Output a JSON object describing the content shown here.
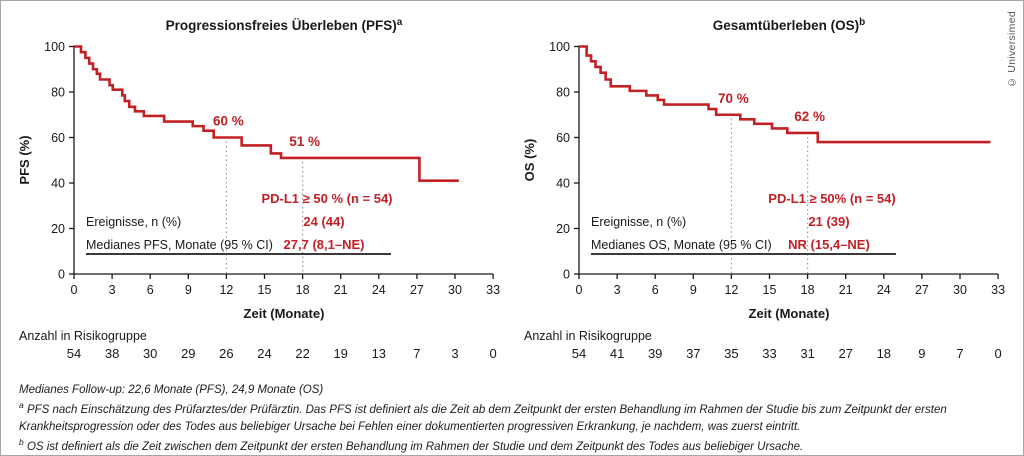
{
  "figure": {
    "credit": "© Universimed",
    "footnotes": {
      "followup": "Medianes Follow-up: 22,6 Monate (PFS), 24,9 Monate (OS)",
      "note_a_sup": "a",
      "note_a": "PFS nach Einschätzung des Prüfarztes/der Prüfärztin. Das PFS ist definiert als die Zeit ab dem Zeitpunkt der ersten Behandlung im Rahmen der Studie bis zum Zeitpunkt der ersten Krankheitsprogression oder des Todes aus beliebiger Ursache bei Fehlen einer dokumentierten progressiven Erkrankung, je nachdem, was zuerst eintritt.",
      "note_b_sup": "b",
      "note_b": "OS ist definiert als die Zeit zwischen dem Zeitpunkt der ersten Behandlung im Rahmen der Studie und dem Zeitpunkt des Todes aus beliebiger Ursache."
    },
    "colors": {
      "curve": "#c32026",
      "axis": "#1a1a1a",
      "text": "#1a1a1a",
      "dotted": "#9c9c9c",
      "underline": "#3a3a3a",
      "border": "#a6a6a6",
      "credit": "#555555"
    }
  },
  "chart_data": [
    {
      "type": "line",
      "subtype": "kaplan-meier-step",
      "title": "Progressionsfreies Überleben (PFS)",
      "title_sup": "a",
      "ylabel": "PFS (%)",
      "xlabel": "Zeit (Monate)",
      "xlim": [
        0,
        33
      ],
      "ylim": [
        0,
        100
      ],
      "grid": false,
      "legend_position": "in-plot table",
      "yticks": [
        0,
        20,
        40,
        60,
        80,
        100
      ],
      "xticks": [
        0,
        3,
        6,
        9,
        12,
        15,
        18,
        21,
        24,
        27,
        30,
        33
      ],
      "series_name": "PD-L1 ≥ 50 % (n = 54)",
      "steps": [
        [
          0,
          100
        ],
        [
          0.55,
          97.5
        ],
        [
          0.9,
          95
        ],
        [
          1.2,
          92.5
        ],
        [
          1.5,
          90
        ],
        [
          1.8,
          88
        ],
        [
          2.05,
          85.5
        ],
        [
          2.8,
          83
        ],
        [
          3.05,
          81
        ],
        [
          3.8,
          78.5
        ],
        [
          4.0,
          76
        ],
        [
          4.35,
          73.5
        ],
        [
          4.8,
          71.5
        ],
        [
          5.5,
          69.5
        ],
        [
          7.1,
          67
        ],
        [
          9.35,
          65
        ],
        [
          10.2,
          63
        ],
        [
          11.0,
          60
        ],
        [
          13.2,
          56.5
        ],
        [
          15.5,
          53
        ],
        [
          16.3,
          51
        ],
        [
          27.2,
          41
        ]
      ],
      "end_month": 30.3,
      "annotations": [
        {
          "month": 12,
          "pct": 60,
          "label": "60 %"
        },
        {
          "month": 18,
          "pct": 51,
          "label": "51 %"
        }
      ],
      "table": {
        "header": "PD-L1 ≥ 50 % (n = 54)",
        "rows": [
          {
            "label": "Ereignisse, n (%)",
            "value": "24 (44)"
          },
          {
            "label": "Medianes PFS, Monate (95 % CI)",
            "value": "27,7 (8,1–NE)"
          }
        ]
      },
      "risk_label": "Anzahl in Risikogruppe",
      "risk_counts": [
        54,
        38,
        30,
        29,
        26,
        24,
        22,
        19,
        13,
        7,
        3,
        0
      ]
    },
    {
      "type": "line",
      "subtype": "kaplan-meier-step",
      "title": "Gesamtüberleben (OS)",
      "title_sup": "b",
      "ylabel": "OS (%)",
      "xlabel": "Zeit (Monate)",
      "xlim": [
        0,
        33
      ],
      "ylim": [
        0,
        100
      ],
      "grid": false,
      "legend_position": "in-plot table",
      "yticks": [
        0,
        20,
        40,
        60,
        80,
        100
      ],
      "xticks": [
        0,
        3,
        6,
        9,
        12,
        15,
        18,
        21,
        24,
        27,
        30,
        33
      ],
      "series_name": "PD-L1 ≥ 50% (n = 54)",
      "steps": [
        [
          0,
          100
        ],
        [
          0.6,
          96
        ],
        [
          0.95,
          93.5
        ],
        [
          1.3,
          91
        ],
        [
          1.7,
          88.5
        ],
        [
          2.1,
          85.5
        ],
        [
          2.5,
          82.5
        ],
        [
          4.0,
          80.5
        ],
        [
          5.3,
          78.5
        ],
        [
          6.2,
          76.5
        ],
        [
          6.7,
          74.5
        ],
        [
          10.2,
          72.5
        ],
        [
          10.8,
          70
        ],
        [
          12.7,
          68
        ],
        [
          13.8,
          66
        ],
        [
          15.2,
          64
        ],
        [
          16.4,
          62
        ],
        [
          18.8,
          58
        ]
      ],
      "end_month": 32.4,
      "annotations": [
        {
          "month": 12,
          "pct": 70,
          "label": "70 %"
        },
        {
          "month": 18,
          "pct": 62,
          "label": "62 %"
        }
      ],
      "table": {
        "header": "PD-L1 ≥ 50% (n = 54)",
        "rows": [
          {
            "label": "Ereignisse, n (%)",
            "value": "21 (39)"
          },
          {
            "label": "Medianes OS, Monate (95 % CI)",
            "value": "NR (15,4–NE)"
          }
        ]
      },
      "risk_label": "Anzahl in Risikogruppe",
      "risk_counts": [
        54,
        41,
        39,
        37,
        35,
        33,
        31,
        27,
        18,
        9,
        7,
        0
      ]
    }
  ]
}
